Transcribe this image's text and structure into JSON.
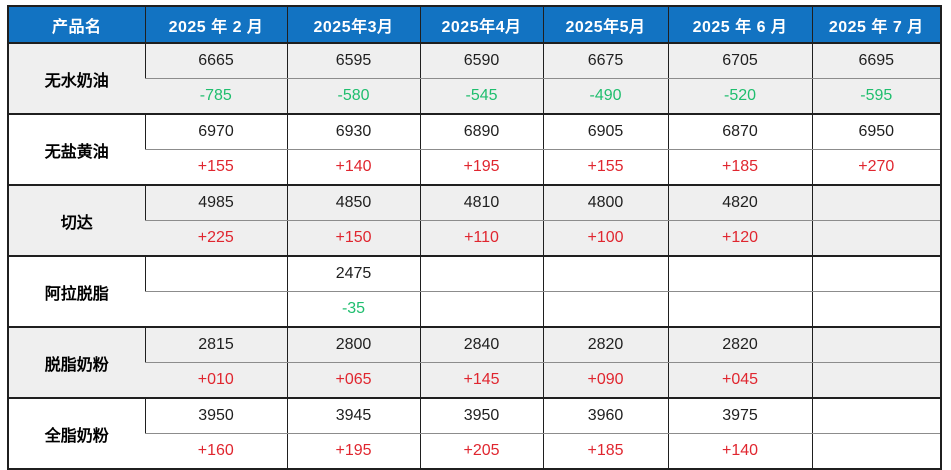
{
  "chart_data": {
    "type": "table",
    "columns": [
      "产品名",
      "2025 年 2 月",
      "2025年3月",
      "2025年4月",
      "2025年5月",
      "2025 年 6 月",
      "2025 年 7 月"
    ],
    "products": [
      {
        "name": "无水奶油",
        "prices": [
          "6665",
          "6595",
          "6590",
          "6675",
          "6705",
          "6695"
        ],
        "changes": [
          "-785",
          "-580",
          "-545",
          "-490",
          "-520",
          "-595"
        ]
      },
      {
        "name": "无盐黄油",
        "prices": [
          "6970",
          "6930",
          "6890",
          "6905",
          "6870",
          "6950"
        ],
        "changes": [
          "+155",
          "+140",
          "+195",
          "+155",
          "+185",
          "+270"
        ]
      },
      {
        "name": "切达",
        "prices": [
          "4985",
          "4850",
          "4810",
          "4800",
          "4820",
          ""
        ],
        "changes": [
          "+225",
          "+150",
          "+110",
          "+100",
          "+120",
          ""
        ]
      },
      {
        "name": "阿拉脱脂",
        "prices": [
          "",
          "2475",
          "",
          "",
          "",
          ""
        ],
        "changes": [
          "",
          "-35",
          "",
          "",
          "",
          ""
        ]
      },
      {
        "name": "脱脂奶粉",
        "prices": [
          "2815",
          "2800",
          "2840",
          "2820",
          "2820",
          ""
        ],
        "changes": [
          "+010",
          "+065",
          "+145",
          "+090",
          "+045",
          ""
        ]
      },
      {
        "name": "全脂奶粉",
        "prices": [
          "3950",
          "3945",
          "3950",
          "3960",
          "3975",
          ""
        ],
        "changes": [
          "+160",
          "+195",
          "+205",
          "+185",
          "+140",
          ""
        ]
      }
    ]
  },
  "colors": {
    "header_bg": "#1273C2",
    "header_text": "#FFFFFF",
    "shaded_row_bg": "#EFEFEF",
    "increase_text": "#E0262F",
    "decrease_text": "#1FBE6E",
    "value_text": "#1F1F1F",
    "border_dark": "#1F1F1F",
    "border_light": "#8C8C8C"
  }
}
